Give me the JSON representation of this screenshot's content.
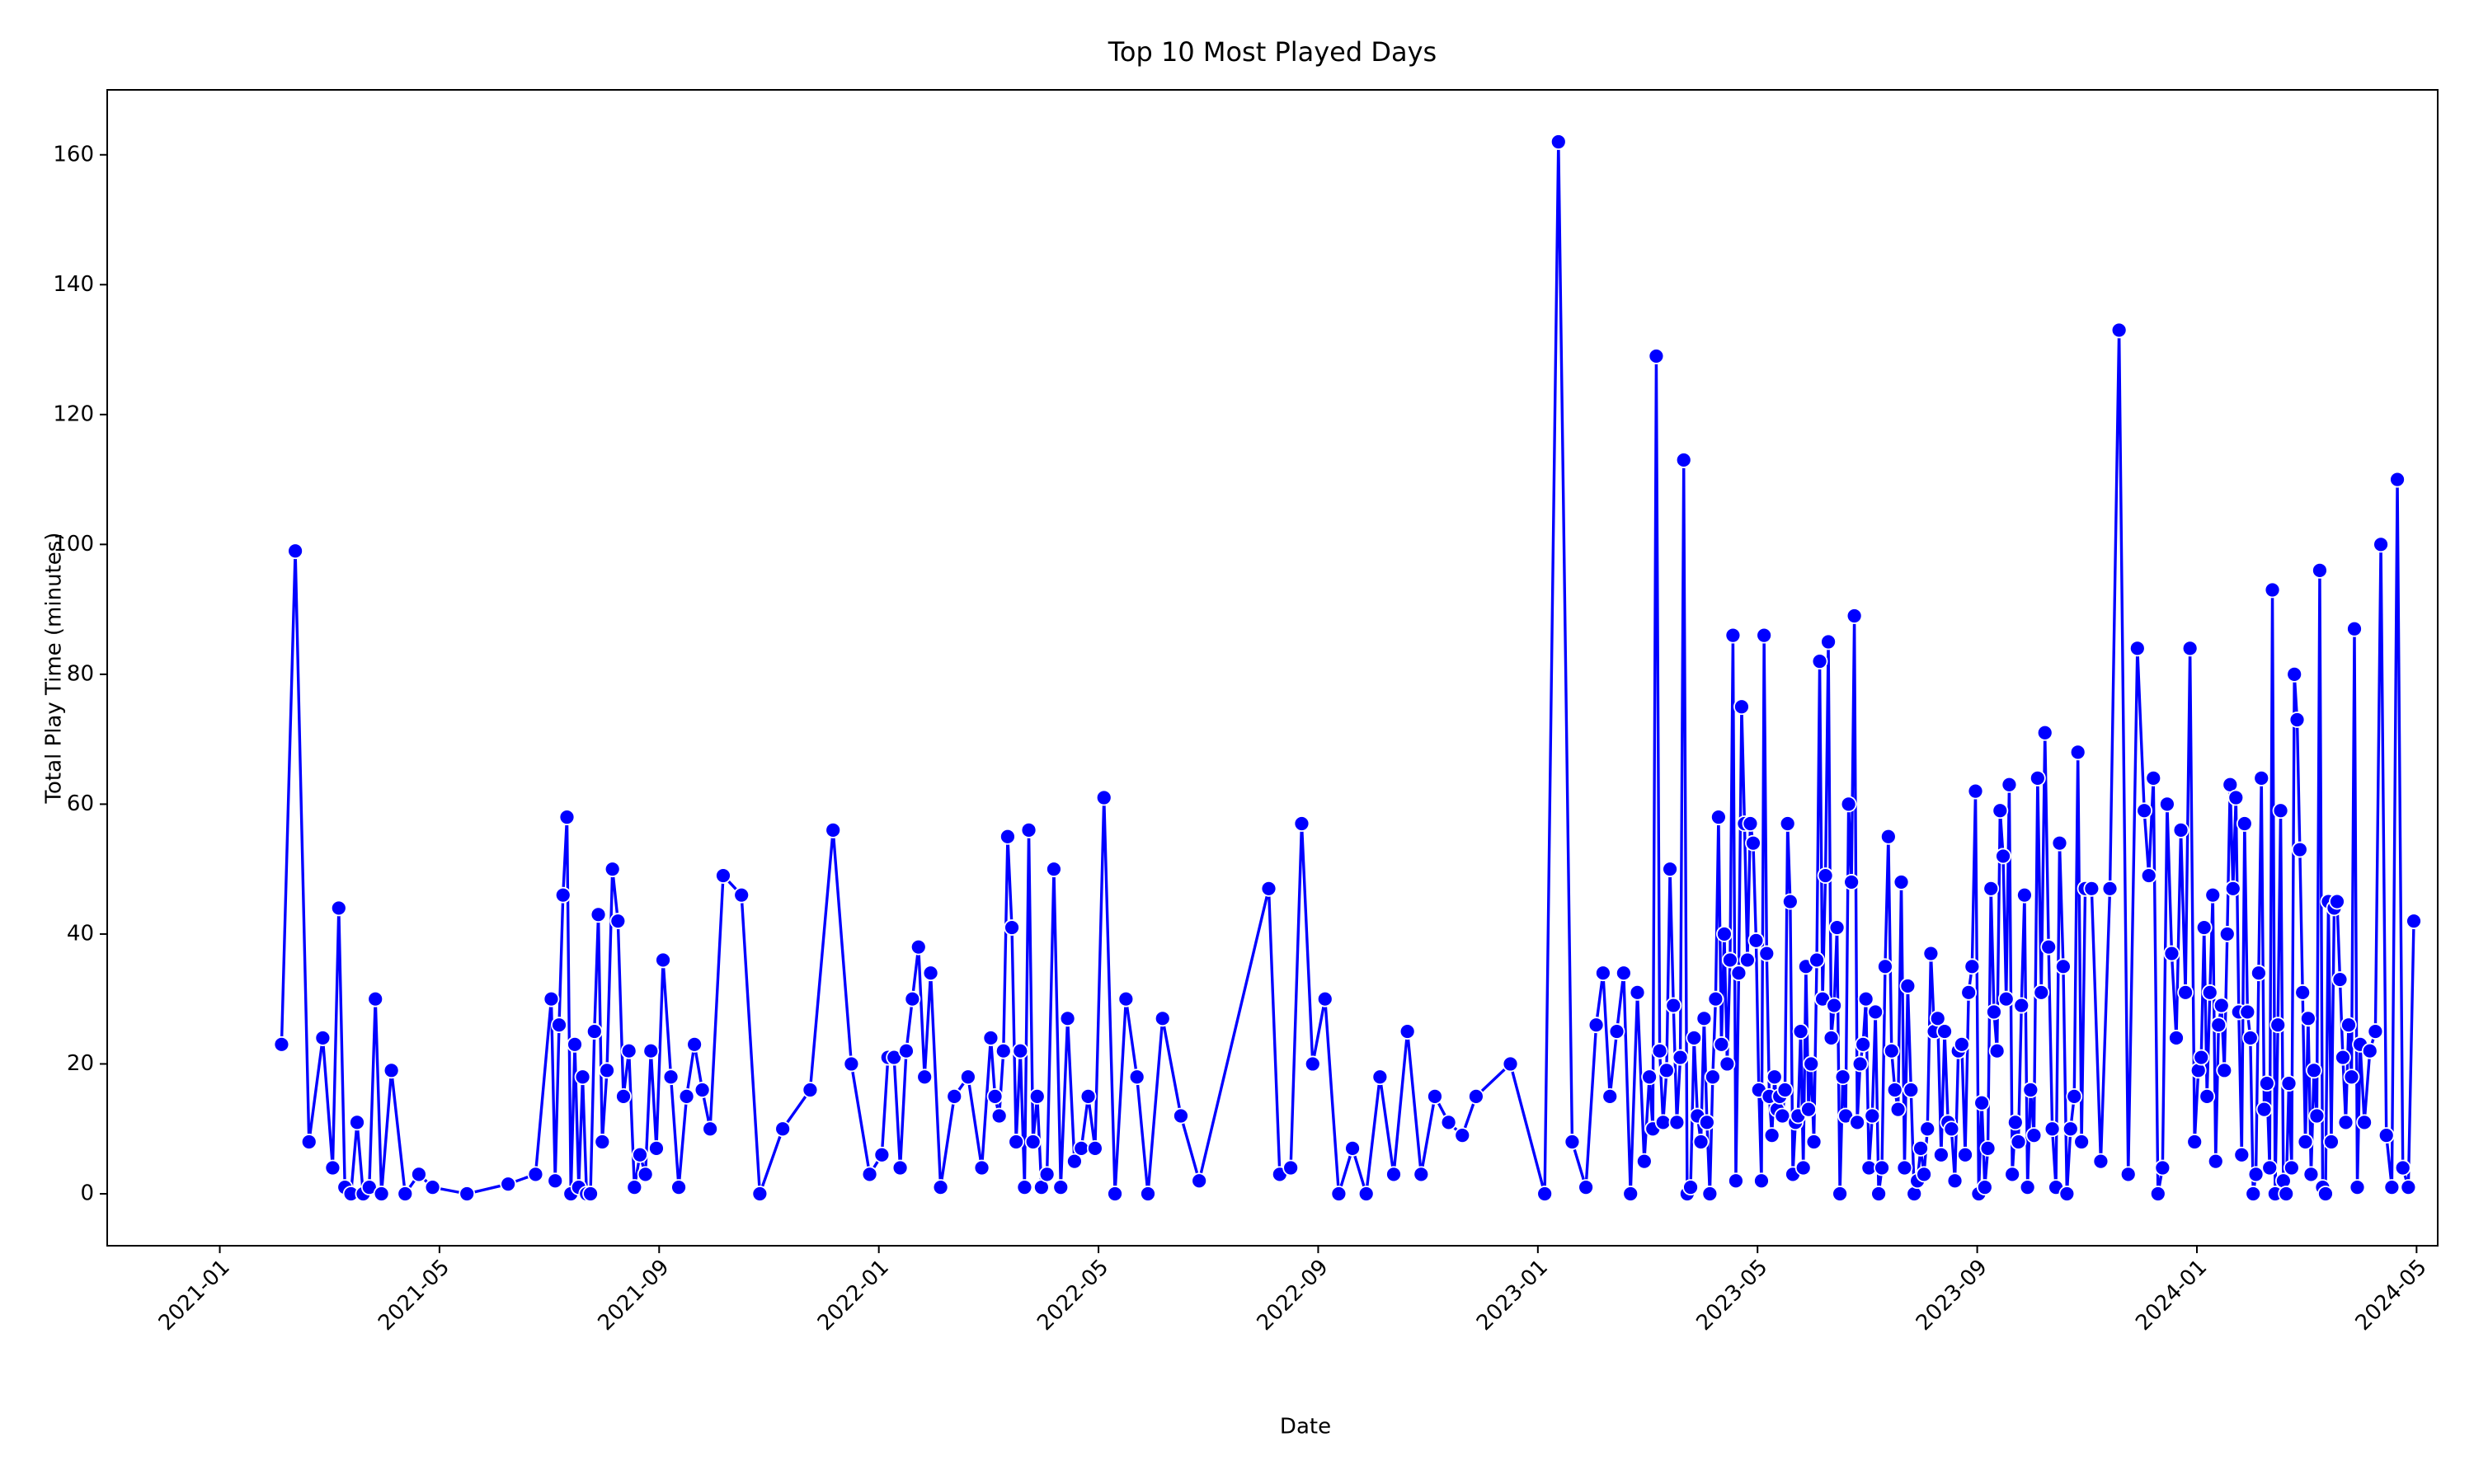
{
  "chart_data": {
    "type": "line",
    "title": "Top 10 Most Played Days",
    "x_label": "Date",
    "y_label": "Total Play Time (minutes)",
    "ylim": [
      -8,
      170
    ],
    "yticks": [
      0,
      20,
      40,
      60,
      80,
      100,
      120,
      140,
      160
    ],
    "xticks": [
      "2021-01",
      "2021-05",
      "2021-09",
      "2022-01",
      "2022-05",
      "2022-09",
      "2023-01",
      "2023-05",
      "2023-09",
      "2024-01",
      "2024-05"
    ],
    "series": [
      {
        "name": "Total Play Time",
        "color": "#0000ff",
        "x": [
          "2021-02",
          "2021-02",
          "2021-02",
          "2021-02",
          "2021-03",
          "2021-03",
          "2021-03",
          "2021-03",
          "2021-03",
          "2021-03",
          "2021-03",
          "2021-03",
          "2021-03",
          "2021-04",
          "2021-04",
          "2021-04",
          "2021-04",
          "2021-05",
          "2021-06",
          "2021-06",
          "2021-07",
          "2021-07",
          "2021-07",
          "2021-07",
          "2021-07",
          "2021-07",
          "2021-07",
          "2021-07",
          "2021-07",
          "2021-07",
          "2021-07",
          "2021-07",
          "2021-07",
          "2021-07",
          "2021-08",
          "2021-08",
          "2021-08",
          "2021-08",
          "2021-08",
          "2021-08",
          "2021-08",
          "2021-08",
          "2021-08",
          "2021-08",
          "2021-09",
          "2021-09",
          "2021-09",
          "2021-09",
          "2021-09",
          "2021-09",
          "2021-09",
          "2021-10",
          "2021-10",
          "2021-10",
          "2021-11",
          "2021-11",
          "2021-12",
          "2021-12",
          "2021-12",
          "2022-01",
          "2022-01",
          "2022-01",
          "2022-01",
          "2022-01",
          "2022-01",
          "2022-01",
          "2022-01",
          "2022-01",
          "2022-02",
          "2022-02",
          "2022-02",
          "2022-02",
          "2022-03",
          "2022-03",
          "2022-03",
          "2022-03",
          "2022-03",
          "2022-03",
          "2022-03",
          "2022-03",
          "2022-03",
          "2022-03",
          "2022-03",
          "2022-03",
          "2022-03",
          "2022-04",
          "2022-04",
          "2022-04",
          "2022-04",
          "2022-04",
          "2022-04",
          "2022-04",
          "2022-04",
          "2022-05",
          "2022-05",
          "2022-05",
          "2022-05",
          "2022-05",
          "2022-06",
          "2022-06",
          "2022-06",
          "2022-08",
          "2022-08",
          "2022-08",
          "2022-08",
          "2022-08",
          "2022-09",
          "2022-09",
          "2022-09",
          "2022-09",
          "2022-10",
          "2022-10",
          "2022-10",
          "2022-10",
          "2022-11",
          "2022-11",
          "2022-11",
          "2022-11",
          "2022-12",
          "2023-01",
          "2023-01",
          "2023-01",
          "2023-01",
          "2023-02",
          "2023-02",
          "2023-02",
          "2023-02",
          "2023-02",
          "2023-02",
          "2023-02",
          "2023-02",
          "2023-03",
          "2023-03",
          "2023-03",
          "2023-03",
          "2023-03",
          "2023-03",
          "2023-03",
          "2023-03",
          "2023-03",
          "2023-03",
          "2023-03",
          "2023-03",
          "2023-03",
          "2023-03",
          "2023-03",
          "2023-03",
          "2023-04",
          "2023-04",
          "2023-04",
          "2023-04",
          "2023-04",
          "2023-04",
          "2023-04",
          "2023-04",
          "2023-04",
          "2023-04",
          "2023-04",
          "2023-04",
          "2023-04",
          "2023-04",
          "2023-04",
          "2023-04",
          "2023-04",
          "2023-04",
          "2023-04",
          "2023-05",
          "2023-05",
          "2023-05",
          "2023-05",
          "2023-05",
          "2023-05",
          "2023-05",
          "2023-05",
          "2023-05",
          "2023-05",
          "2023-05",
          "2023-05",
          "2023-05",
          "2023-05",
          "2023-05",
          "2023-05",
          "2023-05",
          "2023-05",
          "2023-05",
          "2023-05",
          "2023-05",
          "2023-06",
          "2023-06",
          "2023-06",
          "2023-06",
          "2023-06",
          "2023-06",
          "2023-06",
          "2023-06",
          "2023-06",
          "2023-06",
          "2023-06",
          "2023-06",
          "2023-06",
          "2023-06",
          "2023-06",
          "2023-06",
          "2023-06",
          "2023-06",
          "2023-06",
          "2023-07",
          "2023-07",
          "2023-07",
          "2023-07",
          "2023-07",
          "2023-07",
          "2023-07",
          "2023-07",
          "2023-07",
          "2023-07",
          "2023-07",
          "2023-07",
          "2023-07",
          "2023-07",
          "2023-07",
          "2023-07",
          "2023-07",
          "2023-08",
          "2023-08",
          "2023-08",
          "2023-08",
          "2023-08",
          "2023-08",
          "2023-08",
          "2023-08",
          "2023-08",
          "2023-08",
          "2023-08",
          "2023-08",
          "2023-08",
          "2023-08",
          "2023-08",
          "2023-08",
          "2023-09",
          "2023-09",
          "2023-09",
          "2023-09",
          "2023-09",
          "2023-09",
          "2023-09",
          "2023-09",
          "2023-09",
          "2023-09",
          "2023-09",
          "2023-09",
          "2023-09",
          "2023-09",
          "2023-09",
          "2023-09",
          "2023-09",
          "2023-09",
          "2023-10",
          "2023-10",
          "2023-10",
          "2023-10",
          "2023-10",
          "2023-10",
          "2023-10",
          "2023-10",
          "2023-10",
          "2023-10",
          "2023-10",
          "2023-10",
          "2023-10",
          "2023-10",
          "2023-10",
          "2023-11",
          "2023-11",
          "2023-11",
          "2023-11",
          "2023-11",
          "2023-11",
          "2023-12",
          "2023-12",
          "2023-12",
          "2023-12",
          "2023-12",
          "2023-12",
          "2023-12",
          "2023-12",
          "2023-12",
          "2023-12",
          "2023-12",
          "2023-12",
          "2024-01",
          "2024-01",
          "2024-01",
          "2024-01",
          "2024-01",
          "2024-01",
          "2024-01",
          "2024-01",
          "2024-01",
          "2024-01",
          "2024-01",
          "2024-01",
          "2024-01",
          "2024-01",
          "2024-01",
          "2024-01",
          "2024-01",
          "2024-01",
          "2024-01",
          "2024-02",
          "2024-02",
          "2024-02",
          "2024-02",
          "2024-02",
          "2024-02",
          "2024-02",
          "2024-02",
          "2024-02",
          "2024-02",
          "2024-02",
          "2024-02",
          "2024-02",
          "2024-02",
          "2024-02",
          "2024-02",
          "2024-02",
          "2024-02",
          "2024-02",
          "2024-02",
          "2024-03",
          "2024-03",
          "2024-03",
          "2024-03",
          "2024-03",
          "2024-03",
          "2024-03",
          "2024-03",
          "2024-03",
          "2024-03",
          "2024-03",
          "2024-03",
          "2024-03",
          "2024-03",
          "2024-03",
          "2024-03",
          "2024-03",
          "2024-03",
          "2024-03",
          "2024-04",
          "2024-04",
          "2024-04",
          "2024-04",
          "2024-04",
          "2024-04",
          "2024-04",
          "2024-04",
          "2024-04",
          "2024-04"
        ],
        "values": [
          23,
          99,
          8,
          24,
          4,
          44,
          1,
          0,
          11,
          0,
          1,
          30,
          0,
          19,
          0,
          3,
          1,
          0,
          1.5,
          3,
          30,
          2,
          26,
          46,
          58,
          0,
          23,
          1,
          18,
          0,
          0,
          25,
          43,
          8,
          19,
          50,
          42,
          15,
          22,
          1,
          6,
          3,
          22,
          7,
          36,
          18,
          1,
          15,
          23,
          16,
          10,
          49,
          46,
          0,
          10,
          16,
          56,
          20,
          3,
          6,
          21,
          21,
          4,
          22,
          30,
          38,
          18,
          34,
          1,
          15,
          18,
          4,
          24,
          15,
          12,
          22,
          55,
          41,
          8,
          22,
          1,
          56,
          8,
          15,
          1,
          3,
          50,
          1,
          27,
          5,
          7,
          15,
          7,
          61,
          0,
          30,
          18,
          0,
          27,
          12,
          2,
          47,
          3,
          4,
          57,
          20,
          30,
          0,
          7,
          0,
          18,
          3,
          25,
          3,
          15,
          11,
          9,
          15,
          20,
          0,
          162,
          8,
          1,
          26,
          34,
          15,
          25,
          34,
          0,
          31,
          5,
          18,
          10,
          129,
          22,
          11,
          19,
          50,
          29,
          11,
          21,
          113,
          0,
          1,
          24,
          12,
          8,
          27,
          11,
          0,
          18,
          30,
          58,
          23,
          40,
          20,
          36,
          86,
          2,
          34,
          75,
          57,
          36,
          57,
          54,
          39,
          16,
          2,
          86,
          37,
          15,
          9,
          18,
          13,
          15,
          12,
          16,
          57,
          45,
          3,
          11,
          12,
          25,
          4,
          35,
          13,
          20,
          8,
          36,
          82,
          30,
          49,
          85,
          24,
          29,
          41,
          0,
          18,
          12,
          60,
          48,
          89,
          11,
          20,
          23,
          30,
          4,
          12,
          28,
          0,
          4,
          35,
          55,
          22,
          16,
          13,
          48,
          4,
          32,
          16,
          0,
          2,
          7,
          3,
          10,
          37,
          25,
          27,
          6,
          25,
          11,
          10,
          2,
          22,
          23,
          6,
          31,
          35,
          62,
          0,
          14,
          1,
          7,
          47,
          28,
          22,
          59,
          52,
          30,
          63,
          3,
          11,
          8,
          29,
          46,
          1,
          16,
          9,
          64,
          31,
          71,
          38,
          10,
          1,
          54,
          35,
          0,
          10,
          15,
          68,
          8,
          47,
          47,
          5,
          47,
          133,
          3,
          84,
          59,
          49,
          64,
          0,
          4,
          60,
          37,
          24,
          56,
          31,
          84,
          8,
          19,
          21,
          41,
          15,
          31,
          46,
          5,
          26,
          29,
          19,
          40,
          63,
          47,
          61,
          28,
          6,
          57,
          28,
          24,
          0,
          3,
          34,
          64,
          13,
          17,
          4,
          93,
          0,
          26,
          59,
          2,
          0,
          17,
          4,
          80,
          73,
          53,
          31,
          8,
          27,
          3,
          19,
          12,
          96,
          1,
          0,
          45,
          8,
          44,
          45,
          33,
          21,
          11,
          26,
          18,
          87,
          1,
          23,
          11,
          22,
          25,
          100,
          9,
          1,
          110,
          4,
          1,
          42
        ]
      }
    ]
  }
}
